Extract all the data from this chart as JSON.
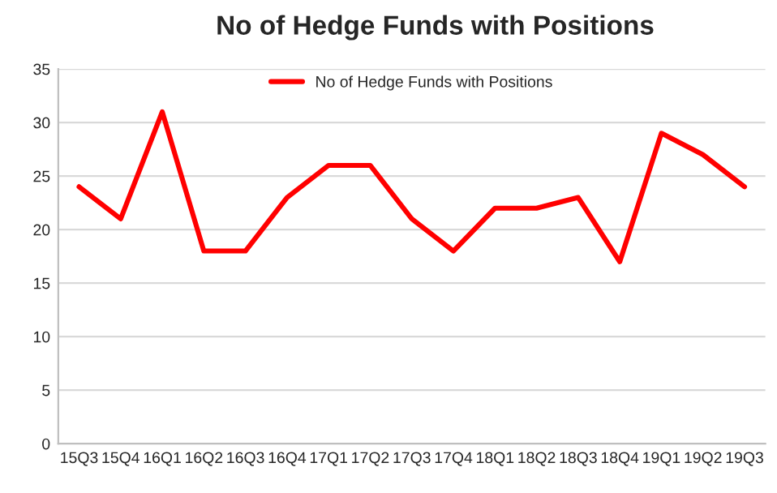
{
  "chart_data": {
    "type": "line",
    "title": "No of Hedge Funds with Positions",
    "categories": [
      "15Q3",
      "15Q4",
      "16Q1",
      "16Q2",
      "16Q3",
      "16Q4",
      "17Q1",
      "17Q2",
      "17Q3",
      "17Q4",
      "18Q1",
      "18Q2",
      "18Q3",
      "18Q4",
      "19Q1",
      "19Q2",
      "19Q3"
    ],
    "series": [
      {
        "name": "No of Hedge Funds with Positions",
        "color": "#ff0000",
        "values": [
          24,
          21,
          31,
          18,
          18,
          23,
          26,
          26,
          21,
          18,
          22,
          22,
          23,
          17,
          29,
          27,
          24
        ]
      }
    ],
    "ylim": [
      0,
      35
    ],
    "yticks": [
      0,
      5,
      10,
      15,
      20,
      25,
      30,
      35
    ],
    "grid": "y",
    "legend": "top",
    "marker": "none",
    "line_style": "solid"
  }
}
